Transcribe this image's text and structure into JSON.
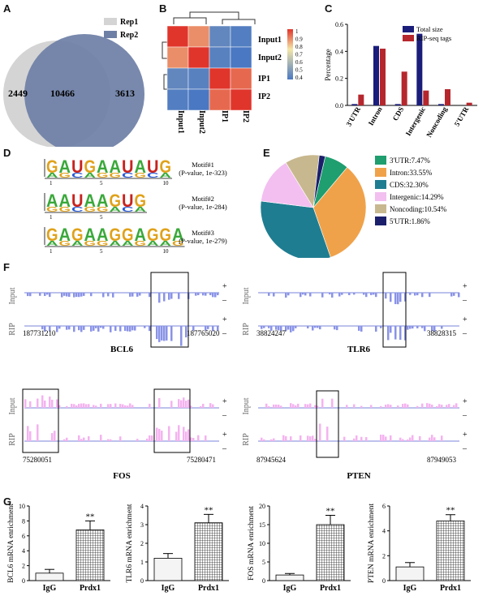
{
  "panel_letters": [
    "A",
    "B",
    "C",
    "D",
    "E",
    "F",
    "G"
  ],
  "venn": {
    "rep1_label": "Rep1",
    "rep2_label": "Rep2",
    "only_rep1": "2449",
    "overlap": "10466",
    "only_rep2": "3613",
    "colors": {
      "rep1": "#d4d4d4",
      "rep2": "#6e7fa6"
    }
  },
  "heatmap": {
    "labels": [
      "Input1",
      "Input2",
      "IP1",
      "IP2"
    ],
    "matrix": [
      [
        1.0,
        0.88,
        0.45,
        0.42
      ],
      [
        0.88,
        1.0,
        0.43,
        0.4
      ],
      [
        0.45,
        0.43,
        1.0,
        0.93
      ],
      [
        0.42,
        0.4,
        0.93,
        1.0
      ]
    ],
    "legend_ticks": [
      "1",
      "0.9",
      "0.8",
      "0.7",
      "0.6",
      "0.5",
      "0.4"
    ]
  },
  "chart_data": [
    {
      "type": "bar",
      "panel": "C",
      "ylabel": "Percentage",
      "ylim": [
        0,
        0.6
      ],
      "yticks": [
        "0.0",
        "0.2",
        "0.4",
        "0.6"
      ],
      "categories": [
        "3'UTR",
        "Intron",
        "CDS",
        "Intergenic",
        "Noncoding",
        "5'UTR"
      ],
      "series": [
        {
          "name": "Total size",
          "color": "#1a1d7a",
          "values": [
            0.01,
            0.44,
            0.01,
            0.53,
            0.01,
            0.0
          ]
        },
        {
          "name": "RIP-seq tags",
          "color": "#b5272d",
          "values": [
            0.08,
            0.42,
            0.25,
            0.11,
            0.12,
            0.02
          ]
        }
      ],
      "legend": "top-right"
    },
    {
      "type": "pie",
      "panel": "E",
      "slices": [
        {
          "label": "3'UTR:7.47%",
          "value": 7.47,
          "color": "#1f9e6f"
        },
        {
          "label": "Intron:33.55%",
          "value": 33.55,
          "color": "#f0a24a"
        },
        {
          "label": "CDS:32.30%",
          "value": 32.3,
          "color": "#1f7d91"
        },
        {
          "label": "Intergenic:14.29%",
          "value": 14.29,
          "color": "#f2bff0"
        },
        {
          "label": "Noncoding:10.54%",
          "value": 10.54,
          "color": "#c8b88f"
        },
        {
          "label": "5'UTR:1.86%",
          "value": 1.86,
          "color": "#1b1f6b"
        }
      ],
      "legend": "right"
    },
    {
      "type": "bar",
      "panel": "G",
      "ylabel": "BCL6 mRNA enrichment",
      "ylim": [
        0,
        10
      ],
      "yticks": [
        "0",
        "2",
        "4",
        "6",
        "8",
        "10"
      ],
      "categories": [
        "IgG",
        "Prdx1"
      ],
      "values": [
        1.0,
        6.8
      ],
      "errors": [
        0.5,
        1.2
      ],
      "annotation": "**"
    },
    {
      "type": "bar",
      "panel": "G",
      "ylabel": "TLR6 mRNA enrichment",
      "ylim": [
        0,
        4
      ],
      "yticks": [
        "0",
        "1",
        "2",
        "3",
        "4"
      ],
      "categories": [
        "IgG",
        "Prdx1"
      ],
      "values": [
        1.2,
        3.1
      ],
      "errors": [
        0.25,
        0.45
      ],
      "annotation": "**"
    },
    {
      "type": "bar",
      "panel": "G",
      "ylabel": "FOS mRNA enrichment",
      "ylim": [
        0,
        20
      ],
      "yticks": [
        "0",
        "5",
        "10",
        "15",
        "20"
      ],
      "categories": [
        "IgG",
        "Prdx1"
      ],
      "values": [
        1.5,
        15.0
      ],
      "errors": [
        0.4,
        2.5
      ],
      "annotation": "**"
    },
    {
      "type": "bar",
      "panel": "G",
      "ylabel": "PTEN mRNA enrichment",
      "ylim": [
        0,
        6
      ],
      "yticks": [
        "0",
        "2",
        "4",
        "6"
      ],
      "categories": [
        "IgG",
        "Prdx1"
      ],
      "values": [
        1.1,
        4.8
      ],
      "errors": [
        0.35,
        0.5
      ],
      "annotation": "**"
    }
  ],
  "motifs": [
    {
      "seq": "GAUGAAUAUG",
      "ticks": [
        "1",
        "5",
        "10"
      ],
      "name": "Motif#1",
      "pvalue": "(P-value, 1e-323)"
    },
    {
      "seq": "AAUAAGUG",
      "ticks": [
        "1",
        "5"
      ],
      "name": "Motif#2",
      "pvalue": "(P-value, 1e-284)"
    },
    {
      "seq": "GAGAAGGAGGA",
      "ticks": [
        "1",
        "5",
        "10"
      ],
      "name": "Motif#3",
      "pvalue": "(P-value, 1e-279)"
    }
  ],
  "tracks": [
    {
      "gene": "BCL6",
      "start": "187731210",
      "end": "187765020",
      "signal": "down"
    },
    {
      "gene": "TLR6",
      "start": "38824247",
      "end": "38828315",
      "signal": "down"
    },
    {
      "gene": "FOS",
      "start": "75280051",
      "end": "75280471",
      "signal": "up"
    },
    {
      "gene": "PTEN",
      "start": "87945624",
      "end": "87949053",
      "signal": "up"
    }
  ],
  "track_labels": {
    "input": "Input",
    "rip": "RIP",
    "plus": "+",
    "minus": "–"
  },
  "motif_base_colors": {
    "A": "#3aa83a",
    "G": "#e0a21b",
    "U": "#c8231f",
    "C": "#2a5bd7"
  }
}
